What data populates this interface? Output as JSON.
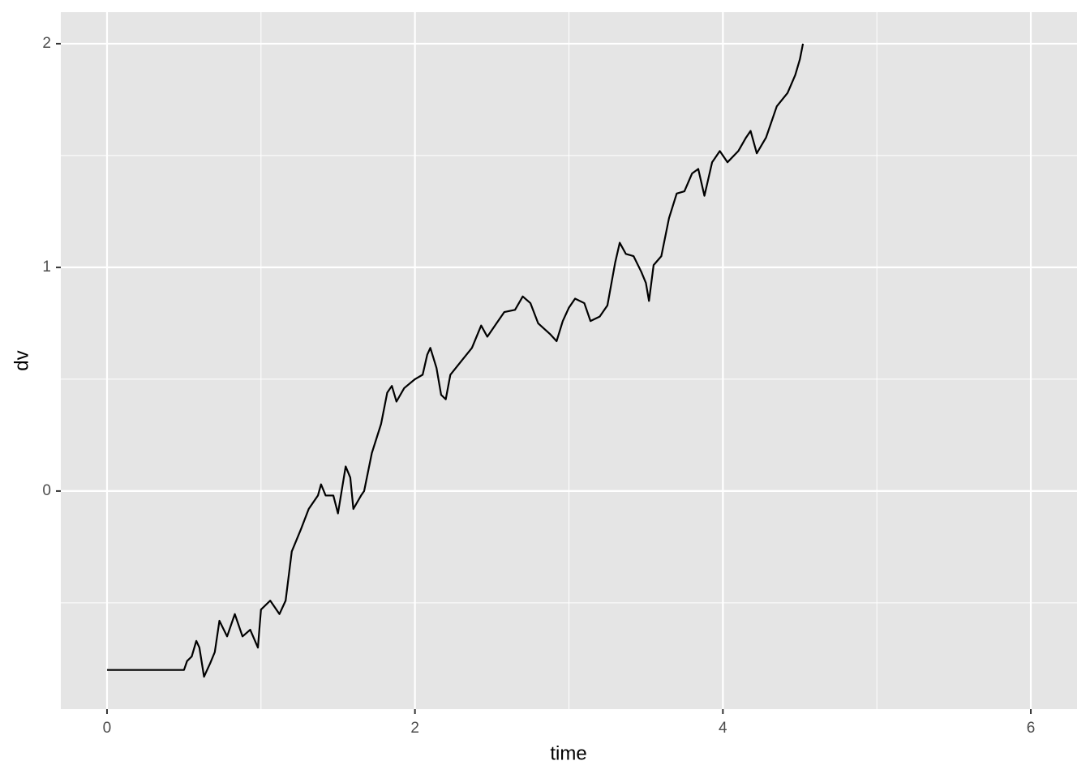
{
  "chart_data": {
    "type": "line",
    "x_label": "time",
    "y_label": "dv",
    "x": [
      0,
      0.5,
      0.52,
      0.55,
      0.58,
      0.6,
      0.63,
      0.67,
      0.7,
      0.73,
      0.78,
      0.83,
      0.88,
      0.93,
      0.98,
      1.0,
      1.06,
      1.12,
      1.16,
      1.2,
      1.26,
      1.31,
      1.37,
      1.39,
      1.42,
      1.47,
      1.5,
      1.55,
      1.58,
      1.6,
      1.65,
      1.67,
      1.72,
      1.78,
      1.82,
      1.85,
      1.88,
      1.93,
      2.0,
      2.05,
      2.08,
      2.1,
      2.14,
      2.17,
      2.2,
      2.23,
      2.3,
      2.37,
      2.43,
      2.47,
      2.53,
      2.58,
      2.65,
      2.7,
      2.75,
      2.8,
      2.88,
      2.92,
      2.96,
      3.0,
      3.04,
      3.1,
      3.14,
      3.2,
      3.25,
      3.3,
      3.33,
      3.37,
      3.42,
      3.47,
      3.5,
      3.52,
      3.55,
      3.6,
      3.65,
      3.7,
      3.75,
      3.8,
      3.84,
      3.88,
      3.93,
      3.98,
      4.03,
      4.1,
      4.15,
      4.18,
      4.22,
      4.28,
      4.35,
      4.42,
      4.47,
      4.5,
      4.52
    ],
    "series": [
      {
        "color": "#000000",
        "values": [
          -0.8,
          -0.8,
          -0.76,
          -0.74,
          -0.67,
          -0.7,
          -0.83,
          -0.77,
          -0.72,
          -0.58,
          -0.65,
          -0.55,
          -0.65,
          -0.62,
          -0.7,
          -0.53,
          -0.49,
          -0.55,
          -0.49,
          -0.27,
          -0.17,
          -0.08,
          -0.02,
          0.03,
          -0.02,
          -0.02,
          -0.1,
          0.11,
          0.06,
          -0.08,
          -0.02,
          0.0,
          0.17,
          0.3,
          0.44,
          0.47,
          0.4,
          0.46,
          0.5,
          0.52,
          0.61,
          0.64,
          0.55,
          0.43,
          0.41,
          0.52,
          0.58,
          0.64,
          0.74,
          0.69,
          0.75,
          0.8,
          0.81,
          0.87,
          0.84,
          0.75,
          0.7,
          0.67,
          0.76,
          0.82,
          0.86,
          0.84,
          0.76,
          0.78,
          0.83,
          1.02,
          1.11,
          1.06,
          1.05,
          0.98,
          0.93,
          0.85,
          1.01,
          1.05,
          1.22,
          1.33,
          1.34,
          1.42,
          1.44,
          1.32,
          1.47,
          1.52,
          1.47,
          1.52,
          1.58,
          1.61,
          1.51,
          1.58,
          1.72,
          1.78,
          1.86,
          1.93,
          2.0
        ]
      }
    ],
    "xlim": [
      -0.3,
      6.3
    ],
    "ylim": [
      -0.975,
      2.141
    ],
    "xticks": [
      0,
      2,
      4,
      6
    ],
    "yticks": [
      0,
      1,
      2
    ],
    "x_minor_breaks": [
      1,
      3,
      5
    ],
    "y_minor_breaks": [
      -0.5,
      0.5,
      1.5
    ],
    "grid": true
  }
}
